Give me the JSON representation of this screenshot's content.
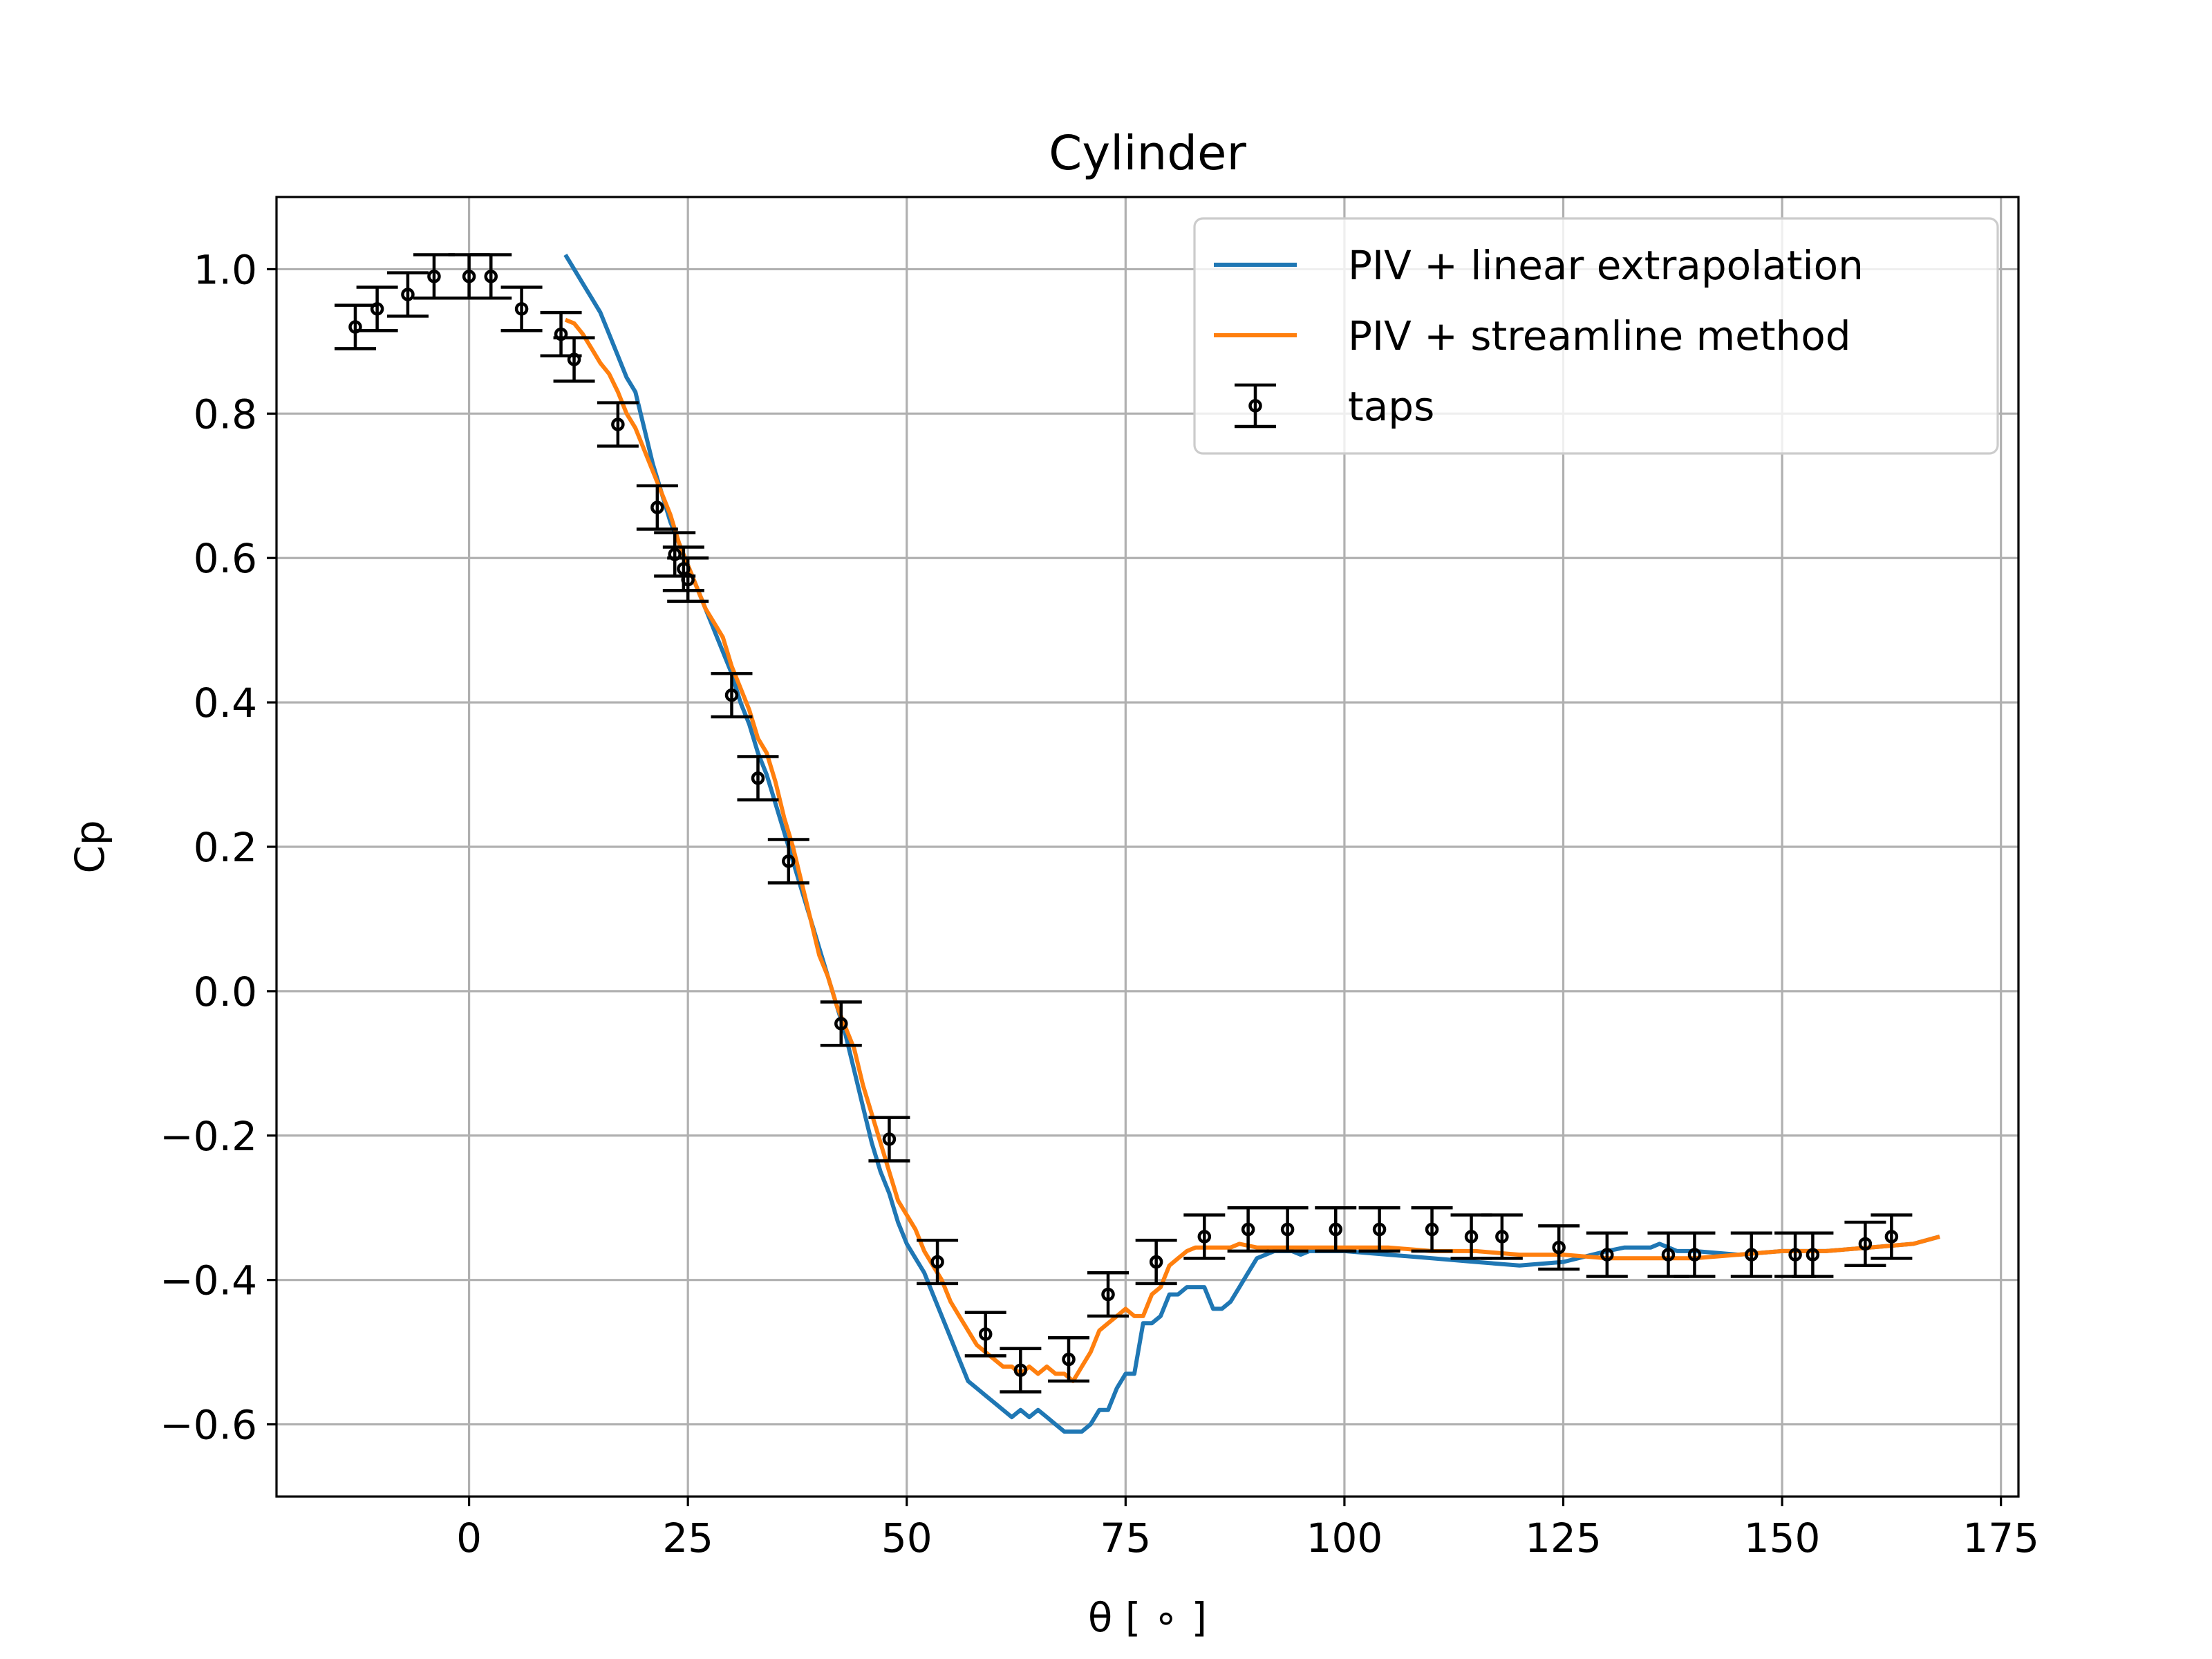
{
  "chart_data": {
    "type": "line",
    "title": "Cylinder",
    "xlabel": "θ [ ∘ ]",
    "ylabel": "Cp",
    "xlim": [
      -22,
      177
    ],
    "ylim": [
      -0.7,
      1.1
    ],
    "xticks": [
      0,
      25,
      50,
      75,
      100,
      125,
      150,
      175
    ],
    "xtick_labels": [
      "0",
      "25",
      "50",
      "75",
      "100",
      "125",
      "150",
      "175"
    ],
    "yticks": [
      -0.6,
      -0.4,
      -0.2,
      0.0,
      0.2,
      0.4,
      0.6,
      0.8,
      1.0
    ],
    "ytick_labels": [
      "−0.6",
      "−0.4",
      "−0.2",
      "0.0",
      "0.2",
      "0.4",
      "0.6",
      "0.8",
      "1.0"
    ],
    "grid": true,
    "legend_position": "top-right",
    "series": [
      {
        "name": "PIV + linear extrapolation",
        "color": "#1f77b4",
        "style": "line",
        "x": [
          11,
          12,
          13,
          14,
          15,
          16,
          17,
          18,
          19,
          20,
          21,
          22,
          23,
          24,
          25,
          26,
          27,
          28,
          29,
          30,
          31,
          32,
          33,
          34,
          35,
          36,
          37,
          38,
          39,
          40,
          41,
          42,
          43,
          44,
          45,
          46,
          47,
          48,
          49,
          50,
          51,
          52,
          53,
          54,
          55,
          56,
          57,
          58,
          59,
          60,
          61,
          62,
          63,
          64,
          65,
          66,
          67,
          68,
          69,
          70,
          71,
          72,
          73,
          74,
          75,
          76,
          77,
          78,
          79,
          80,
          81,
          82,
          83,
          84,
          85,
          86,
          87,
          88,
          89,
          90,
          91,
          92,
          93,
          94,
          95,
          96,
          98,
          100,
          105,
          110,
          115,
          120,
          125,
          130,
          132,
          134,
          135,
          136,
          137,
          138,
          140,
          145,
          150,
          155,
          160,
          165,
          168
        ],
        "y": [
          1.02,
          1.0,
          0.98,
          0.96,
          0.94,
          0.91,
          0.88,
          0.85,
          0.83,
          0.78,
          0.73,
          0.69,
          0.65,
          0.62,
          0.59,
          0.56,
          0.53,
          0.5,
          0.47,
          0.44,
          0.4,
          0.37,
          0.33,
          0.3,
          0.26,
          0.22,
          0.18,
          0.14,
          0.1,
          0.06,
          0.02,
          -0.02,
          -0.06,
          -0.11,
          -0.16,
          -0.21,
          -0.25,
          -0.28,
          -0.32,
          -0.35,
          -0.37,
          -0.39,
          -0.42,
          -0.45,
          -0.48,
          -0.51,
          -0.54,
          -0.55,
          -0.56,
          -0.57,
          -0.58,
          -0.59,
          -0.58,
          -0.59,
          -0.58,
          -0.59,
          -0.6,
          -0.61,
          -0.61,
          -0.61,
          -0.6,
          -0.58,
          -0.58,
          -0.55,
          -0.53,
          -0.53,
          -0.46,
          -0.46,
          -0.45,
          -0.42,
          -0.42,
          -0.41,
          -0.41,
          -0.41,
          -0.44,
          -0.44,
          -0.43,
          -0.41,
          -0.39,
          -0.37,
          -0.365,
          -0.36,
          -0.36,
          -0.36,
          -0.365,
          -0.36,
          -0.36,
          -0.36,
          -0.365,
          -0.37,
          -0.375,
          -0.38,
          -0.375,
          -0.36,
          -0.355,
          -0.355,
          -0.355,
          -0.35,
          -0.355,
          -0.36,
          -0.36,
          -0.365,
          -0.36,
          -0.36,
          -0.355,
          -0.35,
          -0.34
        ]
      },
      {
        "name": "PIV + streamline method",
        "color": "#ff7f0e",
        "style": "line",
        "x": [
          11,
          12,
          13,
          14,
          15,
          16,
          17,
          18,
          19,
          20,
          21,
          22,
          23,
          24,
          25,
          26,
          27,
          28,
          29,
          30,
          31,
          32,
          33,
          34,
          35,
          36,
          37,
          38,
          39,
          40,
          41,
          42,
          43,
          44,
          45,
          46,
          47,
          48,
          49,
          50,
          51,
          52,
          53,
          54,
          55,
          56,
          57,
          58,
          59,
          60,
          61,
          62,
          63,
          64,
          65,
          66,
          67,
          68,
          69,
          70,
          71,
          72,
          73,
          74,
          75,
          76,
          77,
          78,
          79,
          80,
          81,
          82,
          83,
          84,
          85,
          86,
          87,
          88,
          90,
          95,
          100,
          105,
          110,
          115,
          120,
          125,
          130,
          135,
          140,
          145,
          150,
          155,
          160,
          165,
          168
        ],
        "y": [
          0.93,
          0.925,
          0.91,
          0.89,
          0.87,
          0.855,
          0.83,
          0.8,
          0.78,
          0.75,
          0.72,
          0.69,
          0.66,
          0.62,
          0.59,
          0.56,
          0.53,
          0.51,
          0.49,
          0.45,
          0.42,
          0.39,
          0.35,
          0.33,
          0.29,
          0.24,
          0.2,
          0.15,
          0.1,
          0.05,
          0.02,
          -0.02,
          -0.05,
          -0.08,
          -0.13,
          -0.17,
          -0.21,
          -0.25,
          -0.29,
          -0.31,
          -0.33,
          -0.36,
          -0.38,
          -0.4,
          -0.43,
          -0.45,
          -0.47,
          -0.49,
          -0.5,
          -0.51,
          -0.52,
          -0.52,
          -0.53,
          -0.52,
          -0.53,
          -0.52,
          -0.53,
          -0.53,
          -0.54,
          -0.52,
          -0.5,
          -0.47,
          -0.46,
          -0.45,
          -0.44,
          -0.45,
          -0.45,
          -0.42,
          -0.41,
          -0.38,
          -0.37,
          -0.36,
          -0.355,
          -0.355,
          -0.355,
          -0.355,
          -0.355,
          -0.35,
          -0.355,
          -0.355,
          -0.355,
          -0.355,
          -0.36,
          -0.36,
          -0.365,
          -0.365,
          -0.37,
          -0.37,
          -0.37,
          -0.365,
          -0.36,
          -0.36,
          -0.355,
          -0.35,
          -0.34
        ]
      },
      {
        "name": "taps",
        "color": "#000000",
        "style": "errorbar",
        "x": [
          -13,
          -10.5,
          -7,
          -4,
          0,
          2.5,
          6,
          10.5,
          12,
          17,
          21.5,
          23.5,
          24.5,
          25,
          30,
          33,
          36.5,
          42.5,
          48,
          53.5,
          59,
          63,
          68.5,
          73,
          78.5,
          84,
          89,
          93.5,
          99,
          104,
          110,
          114.5,
          118,
          124.5,
          130,
          137,
          140,
          146.5,
          151.5,
          153.5,
          159.5,
          162.5
        ],
        "y": [
          0.92,
          0.945,
          0.965,
          0.99,
          0.99,
          0.99,
          0.945,
          0.91,
          0.875,
          0.785,
          0.67,
          0.605,
          0.585,
          0.57,
          0.41,
          0.295,
          0.18,
          -0.045,
          -0.205,
          -0.375,
          -0.475,
          -0.525,
          -0.51,
          -0.42,
          -0.375,
          -0.34,
          -0.33,
          -0.33,
          -0.33,
          -0.33,
          -0.33,
          -0.34,
          -0.34,
          -0.355,
          -0.365,
          -0.365,
          -0.365,
          -0.365,
          -0.365,
          -0.365,
          -0.35,
          -0.34
        ],
        "yerr": 0.03
      }
    ]
  }
}
